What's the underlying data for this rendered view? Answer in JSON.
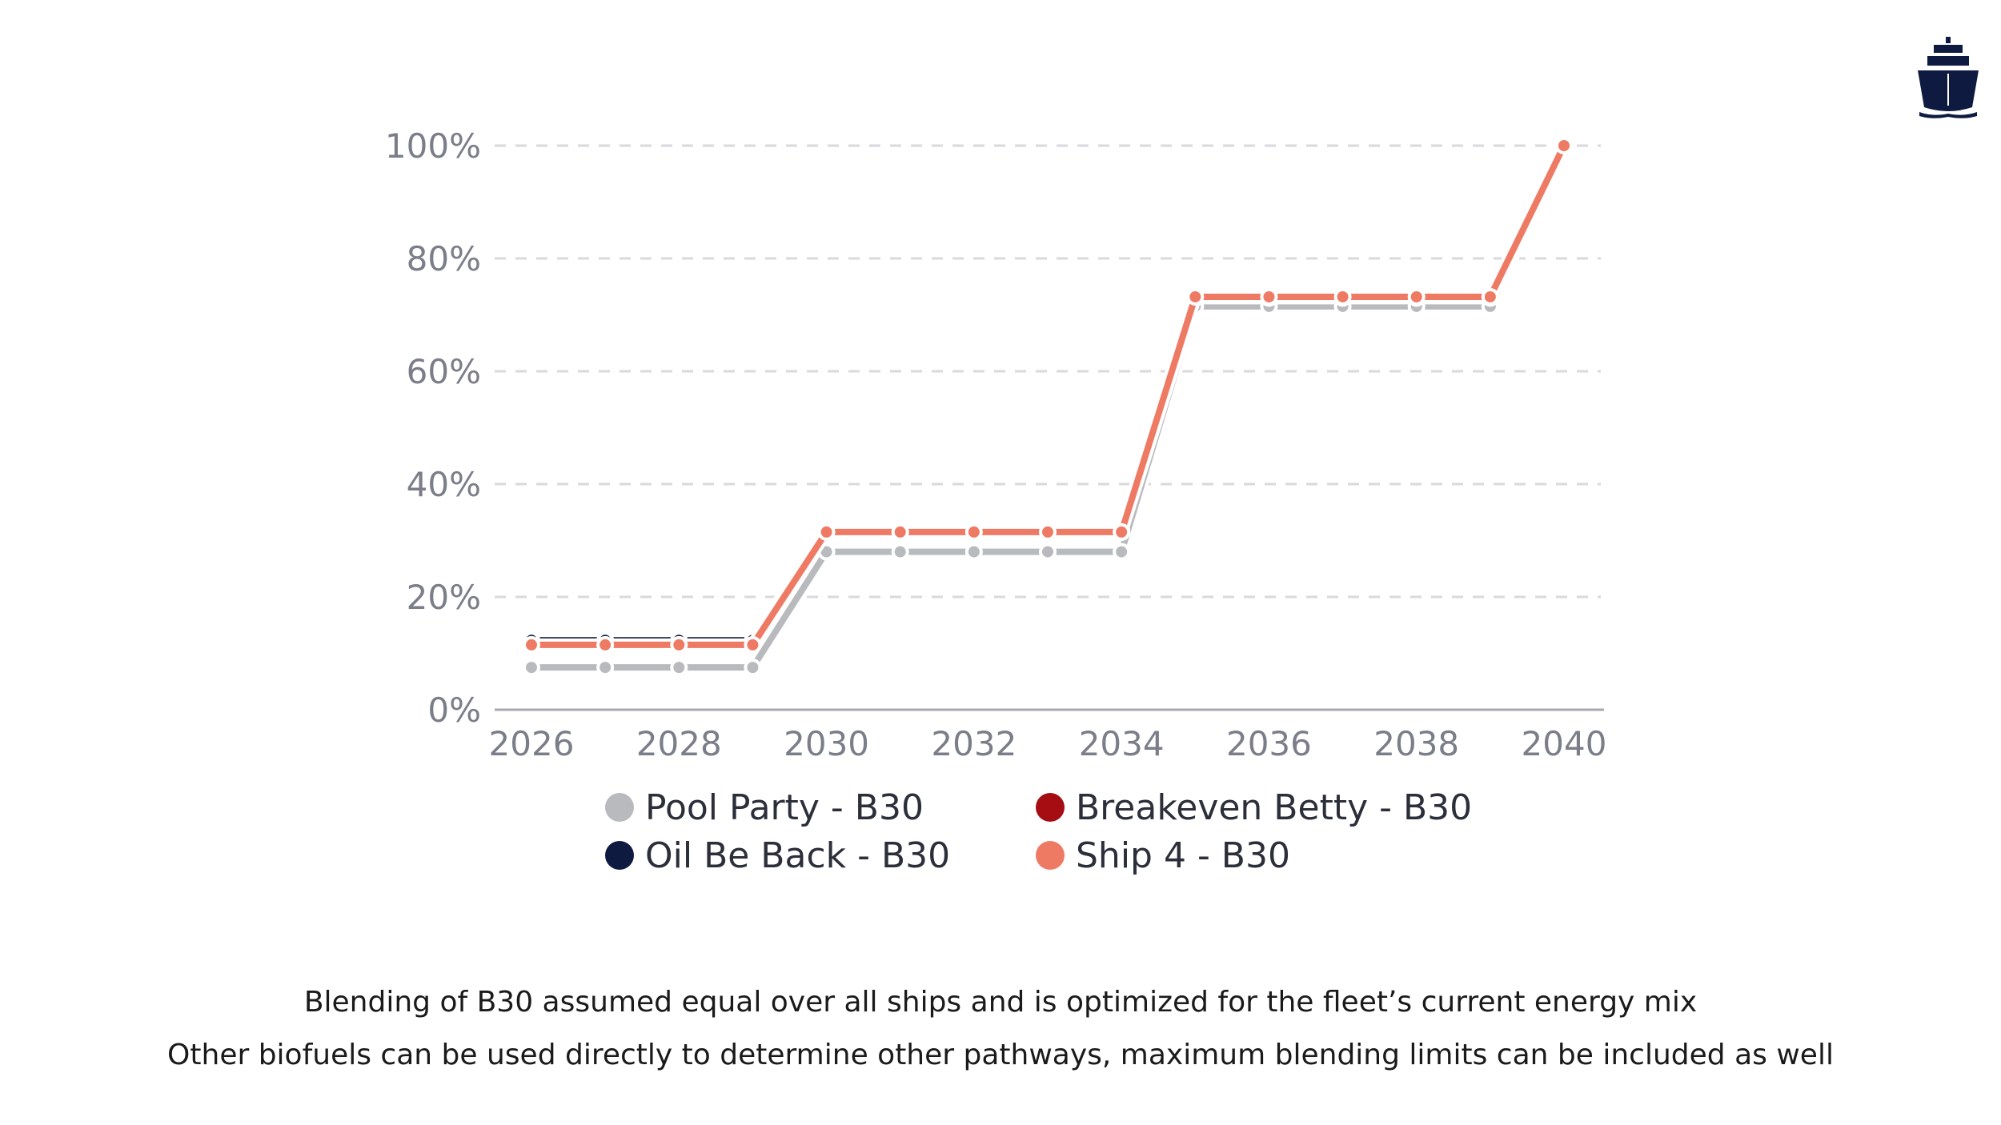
{
  "captions": [
    "Blending of B30 assumed equal over all ships and is optimized for the fleet’s current energy mix",
    "Other biofuels can be used directly to determine other pathways, maximum blending limits can be included as well"
  ],
  "logo_icon": "ship-icon",
  "chart_data": {
    "type": "line",
    "x": [
      2026,
      2027,
      2028,
      2029,
      2030,
      2031,
      2032,
      2033,
      2034,
      2035,
      2036,
      2037,
      2038,
      2039,
      2040
    ],
    "x_tick_labels": [
      "2026",
      "2028",
      "2030",
      "2032",
      "2034",
      "2036",
      "2038",
      "2040"
    ],
    "y_tick_labels": [
      "0%",
      "20%",
      "40%",
      "60%",
      "80%",
      "100%"
    ],
    "xlim": [
      2026,
      2040
    ],
    "ylim": [
      0,
      100
    ],
    "grid": "horizontal-dashed",
    "legend_position": "bottom",
    "series": [
      {
        "name": "Pool Party - B30",
        "color": "#b9babe",
        "values": [
          7.5,
          7.5,
          7.5,
          7.5,
          28,
          28,
          28,
          28,
          28,
          71.5,
          71.5,
          71.5,
          71.5,
          71.5,
          100
        ]
      },
      {
        "name": "Breakeven Betty - B30",
        "color": "#a50d12",
        "values": [
          12,
          12,
          12,
          12,
          31.5,
          31.5,
          31.5,
          31.5,
          31.5,
          73,
          73,
          73,
          73,
          73,
          100
        ]
      },
      {
        "name": "Oil Be Back - B30",
        "color": "#0e1a40",
        "values": [
          12.3,
          12.3,
          12.3,
          12.3,
          31.8,
          31.8,
          31.8,
          31.8,
          31.8,
          73.3,
          73.3,
          73.3,
          73.3,
          73.3,
          100
        ]
      },
      {
        "name": "Ship 4 - B30",
        "color": "#ef7a64",
        "values": [
          11.5,
          11.5,
          11.5,
          11.5,
          31.5,
          31.5,
          31.5,
          31.5,
          31.5,
          73.2,
          73.2,
          73.2,
          73.2,
          73.2,
          100
        ]
      }
    ]
  }
}
